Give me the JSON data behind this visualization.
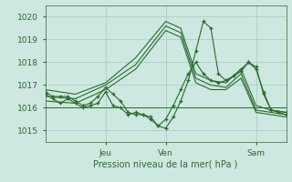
{
  "title": "",
  "xlabel": "Pression niveau de la mer( hPa )",
  "ylabel": "",
  "background_color": "#cce8e0",
  "grid_color": "#aad0c8",
  "line_color": "#2d6a2d",
  "ylim": [
    1014.5,
    1020.5
  ],
  "xlim": [
    0,
    96
  ],
  "xtick_positions": [
    24,
    48,
    84
  ],
  "xtick_labels": [
    "Jeu",
    "Ven",
    "Sam"
  ],
  "ytick_positions": [
    1015,
    1016,
    1017,
    1018,
    1019,
    1020
  ],
  "series": [
    {
      "x": [
        0,
        12,
        24,
        36,
        48,
        54,
        60,
        66,
        72,
        78,
        84,
        90,
        96
      ],
      "y": [
        1016.8,
        1016.6,
        1017.1,
        1018.2,
        1019.8,
        1019.5,
        1017.5,
        1017.2,
        1017.1,
        1017.7,
        1016.1,
        1015.9,
        1015.8
      ],
      "marker": false,
      "lw": 0.8
    },
    {
      "x": [
        0,
        12,
        24,
        36,
        48,
        54,
        60,
        66,
        72,
        78,
        84,
        90,
        96
      ],
      "y": [
        1016.5,
        1016.4,
        1017.0,
        1017.9,
        1019.6,
        1019.3,
        1017.3,
        1017.0,
        1016.9,
        1017.5,
        1015.9,
        1015.8,
        1015.7
      ],
      "marker": false,
      "lw": 0.8
    },
    {
      "x": [
        0,
        12,
        24,
        36,
        48,
        54,
        60,
        66,
        72,
        78,
        84,
        90,
        96
      ],
      "y": [
        1016.3,
        1016.2,
        1016.8,
        1017.7,
        1019.4,
        1019.1,
        1017.1,
        1016.8,
        1016.8,
        1017.3,
        1015.8,
        1015.7,
        1015.6
      ],
      "marker": false,
      "lw": 0.8
    },
    {
      "x": [
        0,
        12,
        24,
        36,
        48,
        60,
        72,
        84,
        96
      ],
      "y": [
        1016.0,
        1016.0,
        1016.0,
        1016.0,
        1016.0,
        1016.0,
        1016.0,
        1016.0,
        1016.0
      ],
      "marker": false,
      "lw": 0.7
    },
    {
      "x": [
        0,
        3,
        6,
        9,
        12,
        15,
        18,
        21,
        24,
        27,
        30,
        33,
        36,
        39,
        42,
        45,
        48,
        51,
        54,
        57,
        60,
        63,
        66,
        69,
        72,
        75,
        78,
        81,
        84,
        87,
        90,
        93,
        96
      ],
      "y": [
        1016.6,
        1016.4,
        1016.2,
        1016.4,
        1016.2,
        1016.0,
        1016.1,
        1016.2,
        1016.7,
        1016.1,
        1016.0,
        1015.7,
        1015.8,
        1015.7,
        1015.5,
        1015.2,
        1015.5,
        1016.1,
        1016.8,
        1017.5,
        1018.0,
        1017.5,
        1017.2,
        1017.1,
        1017.2,
        1017.4,
        1017.7,
        1018.0,
        1017.7,
        1016.7,
        1015.9,
        1015.8,
        1015.7
      ],
      "marker": true,
      "markersize": 3.0,
      "lw": 0.8
    },
    {
      "x": [
        0,
        3,
        6,
        9,
        12,
        15,
        18,
        21,
        24,
        27,
        30,
        33,
        36,
        39,
        42,
        45,
        48,
        51,
        54,
        57,
        60,
        63,
        66,
        69,
        72,
        75,
        78,
        81,
        84,
        87,
        90,
        96
      ],
      "y": [
        1016.7,
        1016.5,
        1016.5,
        1016.5,
        1016.3,
        1016.1,
        1016.2,
        1016.5,
        1016.9,
        1016.6,
        1016.3,
        1015.8,
        1015.7,
        1015.7,
        1015.6,
        1015.2,
        1015.1,
        1015.6,
        1016.3,
        1017.2,
        1018.5,
        1019.8,
        1019.5,
        1017.5,
        1017.2,
        1017.4,
        1017.6,
        1018.0,
        1017.8,
        1016.6,
        1015.9,
        1015.8
      ],
      "marker": true,
      "markersize": 3.0,
      "lw": 0.8
    }
  ]
}
